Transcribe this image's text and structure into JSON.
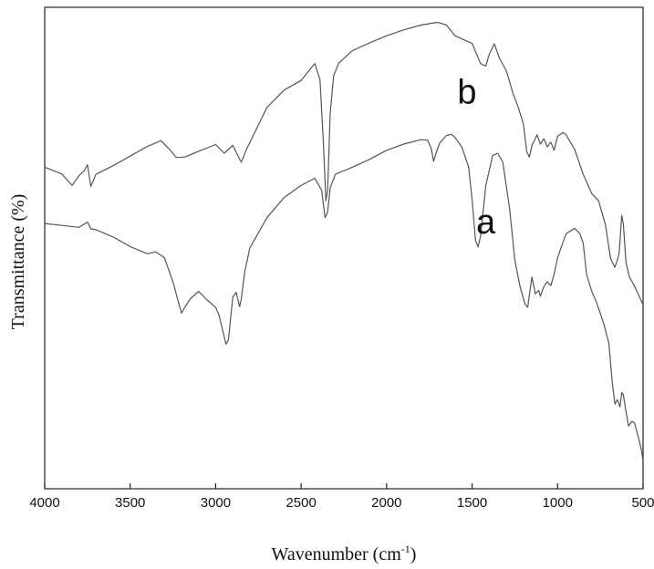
{
  "chart_data": {
    "type": "line",
    "xlabel": "Wavenumber (cm",
    "xlabel_superscript": "-1",
    "xlabel_suffix": ")",
    "ylabel": "Transmittance (%)",
    "xlim": [
      4000,
      500
    ],
    "ylim": [
      0,
      100
    ],
    "x_ticks": [
      "4000",
      "3500",
      "3000",
      "2500",
      "2000",
      "1500",
      "1000",
      "500"
    ],
    "grid": false,
    "series": [
      {
        "name": "b",
        "color": "#555555",
        "points": [
          [
            4000,
            66.8
          ],
          [
            3900,
            65.4
          ],
          [
            3840,
            63.0
          ],
          [
            3800,
            65.0
          ],
          [
            3770,
            66.0
          ],
          [
            3750,
            67.3
          ],
          [
            3730,
            62.8
          ],
          [
            3700,
            65.3
          ],
          [
            3600,
            67.1
          ],
          [
            3500,
            69.1
          ],
          [
            3400,
            71.1
          ],
          [
            3320,
            72.3
          ],
          [
            3270,
            70.5
          ],
          [
            3230,
            68.8
          ],
          [
            3180,
            68.9
          ],
          [
            3100,
            70.1
          ],
          [
            3000,
            71.5
          ],
          [
            2950,
            69.7
          ],
          [
            2900,
            71.3
          ],
          [
            2850,
            67.8
          ],
          [
            2820,
            70.5
          ],
          [
            2700,
            79.2
          ],
          [
            2600,
            82.8
          ],
          [
            2500,
            84.8
          ],
          [
            2420,
            88.3
          ],
          [
            2390,
            85.0
          ],
          [
            2370,
            72.0
          ],
          [
            2355,
            59.8
          ],
          [
            2345,
            62.0
          ],
          [
            2330,
            78.0
          ],
          [
            2310,
            85.8
          ],
          [
            2280,
            88.4
          ],
          [
            2200,
            91.0
          ],
          [
            2100,
            92.6
          ],
          [
            2000,
            94.1
          ],
          [
            1900,
            95.3
          ],
          [
            1800,
            96.3
          ],
          [
            1700,
            96.9
          ],
          [
            1650,
            96.3
          ],
          [
            1600,
            94.1
          ],
          [
            1550,
            93.3
          ],
          [
            1500,
            92.5
          ],
          [
            1450,
            88.3
          ],
          [
            1420,
            87.8
          ],
          [
            1400,
            90.2
          ],
          [
            1370,
            92.4
          ],
          [
            1340,
            89.4
          ],
          [
            1300,
            86.8
          ],
          [
            1260,
            82.0
          ],
          [
            1230,
            79.2
          ],
          [
            1200,
            75.8
          ],
          [
            1180,
            70.0
          ],
          [
            1165,
            68.9
          ],
          [
            1150,
            71.3
          ],
          [
            1120,
            73.5
          ],
          [
            1100,
            71.6
          ],
          [
            1080,
            72.7
          ],
          [
            1060,
            71.0
          ],
          [
            1040,
            72.0
          ],
          [
            1020,
            70.3
          ],
          [
            1000,
            73.2
          ],
          [
            970,
            74.0
          ],
          [
            950,
            73.5
          ],
          [
            900,
            70.5
          ],
          [
            850,
            65.3
          ],
          [
            800,
            61.3
          ],
          [
            760,
            59.8
          ],
          [
            720,
            54.8
          ],
          [
            690,
            47.8
          ],
          [
            665,
            46.0
          ],
          [
            650,
            47.5
          ],
          [
            640,
            49.0
          ],
          [
            625,
            56.8
          ],
          [
            615,
            55.0
          ],
          [
            600,
            47.0
          ],
          [
            580,
            44.0
          ],
          [
            550,
            42.1
          ],
          [
            500,
            38.2
          ]
        ]
      },
      {
        "name": "a",
        "color": "#555555",
        "points": [
          [
            4000,
            55.1
          ],
          [
            3900,
            54.7
          ],
          [
            3800,
            54.3
          ],
          [
            3750,
            55.4
          ],
          [
            3730,
            54.0
          ],
          [
            3700,
            53.8
          ],
          [
            3600,
            52.3
          ],
          [
            3500,
            50.3
          ],
          [
            3400,
            48.8
          ],
          [
            3350,
            49.2
          ],
          [
            3300,
            48.0
          ],
          [
            3250,
            43.0
          ],
          [
            3200,
            36.5
          ],
          [
            3150,
            39.4
          ],
          [
            3100,
            41.0
          ],
          [
            3050,
            39.2
          ],
          [
            3000,
            37.7
          ],
          [
            2980,
            36.0
          ],
          [
            2940,
            30.0
          ],
          [
            2925,
            31.0
          ],
          [
            2900,
            39.8
          ],
          [
            2880,
            40.8
          ],
          [
            2860,
            37.8
          ],
          [
            2850,
            39.4
          ],
          [
            2830,
            45.0
          ],
          [
            2800,
            50.0
          ],
          [
            2700,
            56.3
          ],
          [
            2600,
            60.5
          ],
          [
            2500,
            63.0
          ],
          [
            2420,
            64.5
          ],
          [
            2380,
            62.0
          ],
          [
            2360,
            56.3
          ],
          [
            2345,
            57.5
          ],
          [
            2330,
            62.5
          ],
          [
            2300,
            65.3
          ],
          [
            2200,
            66.8
          ],
          [
            2100,
            68.4
          ],
          [
            2000,
            70.3
          ],
          [
            1900,
            71.6
          ],
          [
            1800,
            72.5
          ],
          [
            1760,
            72.4
          ],
          [
            1740,
            70.8
          ],
          [
            1725,
            68.0
          ],
          [
            1710,
            69.8
          ],
          [
            1690,
            71.8
          ],
          [
            1650,
            73.4
          ],
          [
            1620,
            73.6
          ],
          [
            1600,
            73.0
          ],
          [
            1560,
            71.0
          ],
          [
            1520,
            66.8
          ],
          [
            1500,
            60.0
          ],
          [
            1480,
            51.6
          ],
          [
            1465,
            50.2
          ],
          [
            1450,
            52.5
          ],
          [
            1420,
            63.0
          ],
          [
            1380,
            69.2
          ],
          [
            1350,
            69.7
          ],
          [
            1320,
            67.8
          ],
          [
            1280,
            58.0
          ],
          [
            1250,
            47.5
          ],
          [
            1220,
            42.0
          ],
          [
            1190,
            38.3
          ],
          [
            1175,
            37.7
          ],
          [
            1160,
            41.5
          ],
          [
            1150,
            44.0
          ],
          [
            1130,
            40.5
          ],
          [
            1110,
            41.2
          ],
          [
            1100,
            40.0
          ],
          [
            1080,
            42.0
          ],
          [
            1060,
            43.0
          ],
          [
            1040,
            42.2
          ],
          [
            1020,
            44.5
          ],
          [
            1000,
            48.0
          ],
          [
            970,
            51.0
          ],
          [
            950,
            53.0
          ],
          [
            900,
            54.1
          ],
          [
            870,
            53.0
          ],
          [
            850,
            51.0
          ],
          [
            830,
            44.5
          ],
          [
            800,
            41.0
          ],
          [
            770,
            38.5
          ],
          [
            730,
            34.3
          ],
          [
            700,
            30.2
          ],
          [
            680,
            22.0
          ],
          [
            665,
            17.6
          ],
          [
            650,
            18.5
          ],
          [
            635,
            17.0
          ],
          [
            625,
            20.0
          ],
          [
            615,
            19.5
          ],
          [
            600,
            16.0
          ],
          [
            585,
            13.0
          ],
          [
            565,
            14.0
          ],
          [
            550,
            13.7
          ],
          [
            530,
            11.0
          ],
          [
            510,
            8.2
          ],
          [
            500,
            5.8
          ]
        ]
      }
    ],
    "annotations": [
      {
        "text": "b",
        "x": 1530,
        "y": 80
      },
      {
        "text": "a",
        "x": 1420,
        "y": 53
      }
    ]
  }
}
